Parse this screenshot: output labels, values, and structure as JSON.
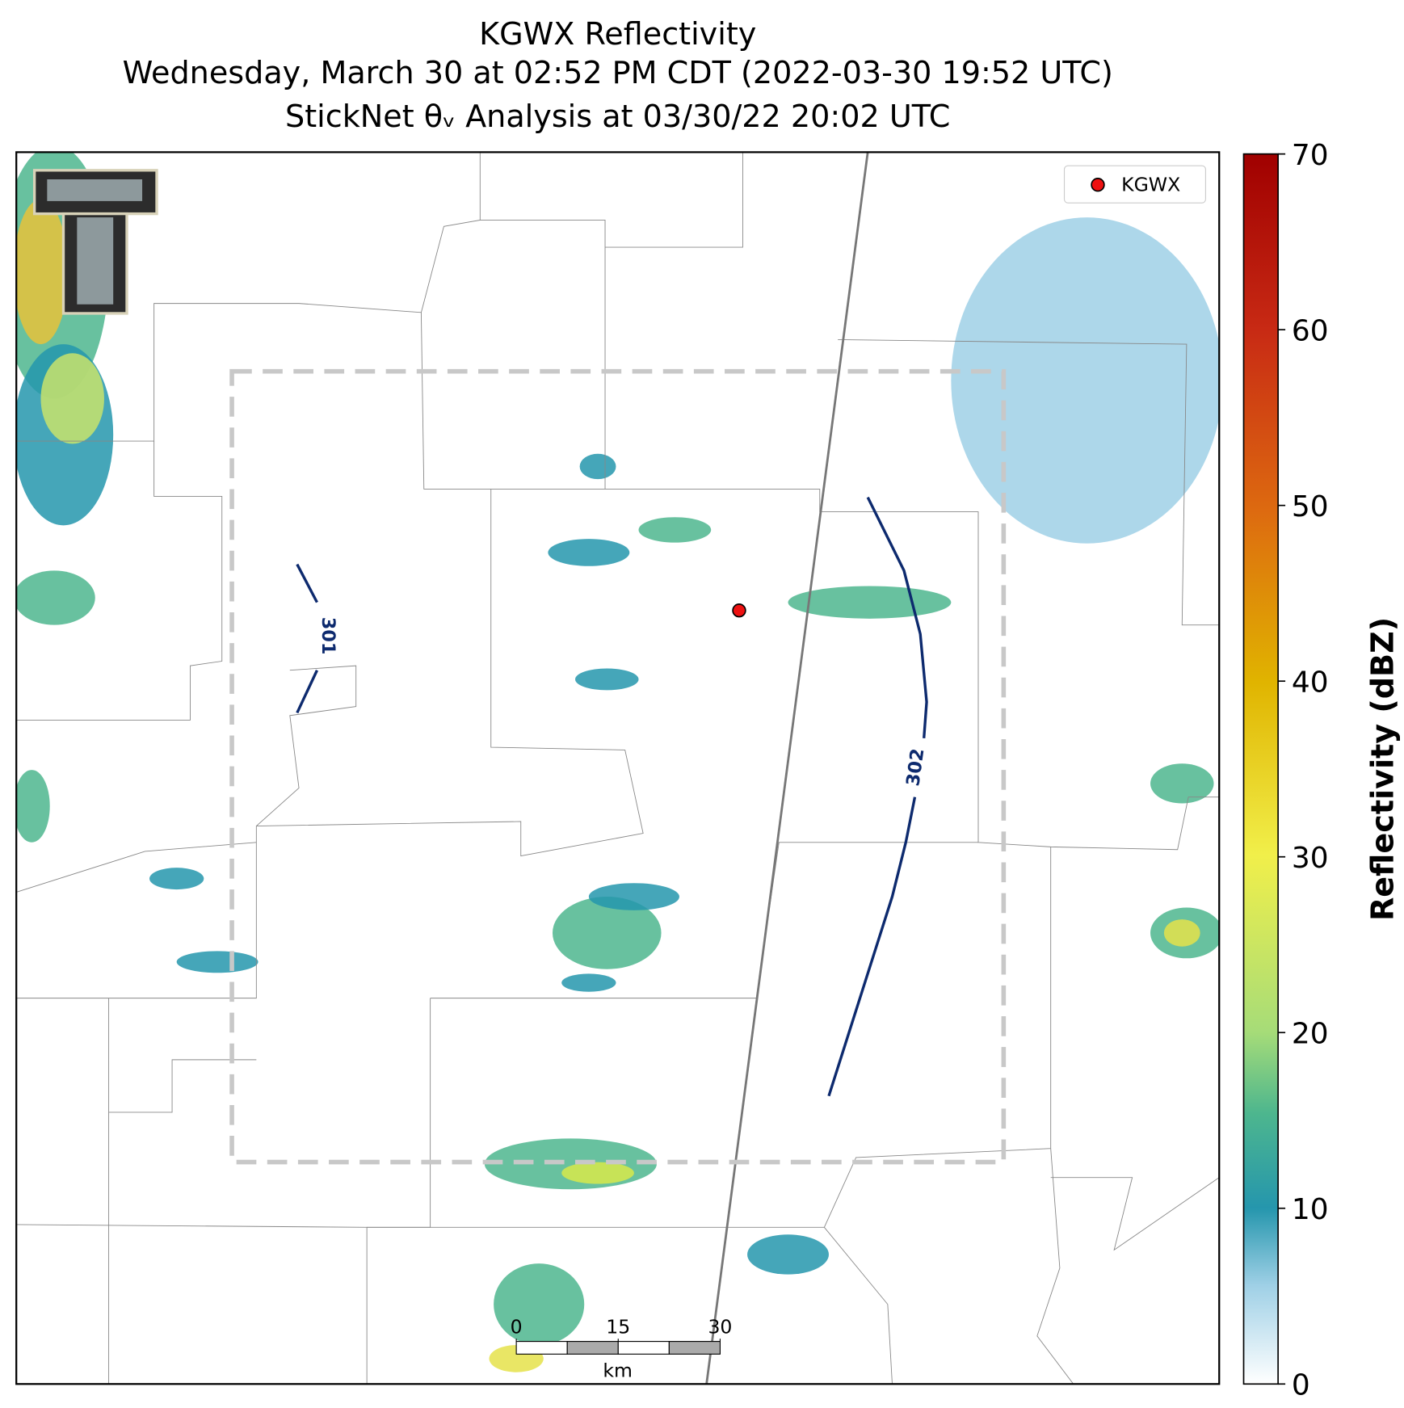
{
  "title": [
    "KGWX Reflectivity",
    "Wednesday, March 30 at 02:52 PM CDT (2022-03-30 19:52 UTC)",
    "StickNet θᵥ Analysis at 03/30/22 20:02 UTC"
  ],
  "legend": {
    "label": "KGWX"
  },
  "contours": [
    {
      "label": "301"
    },
    {
      "label": "302"
    }
  ],
  "colorbar": {
    "label": "Reflectivity (dBZ)",
    "lim": [
      0,
      70
    ],
    "ticks": [
      0,
      10,
      20,
      30,
      40,
      50,
      60,
      70
    ]
  },
  "scale_bar": {
    "ticks": [
      0,
      15,
      30
    ],
    "unit": "km"
  }
}
